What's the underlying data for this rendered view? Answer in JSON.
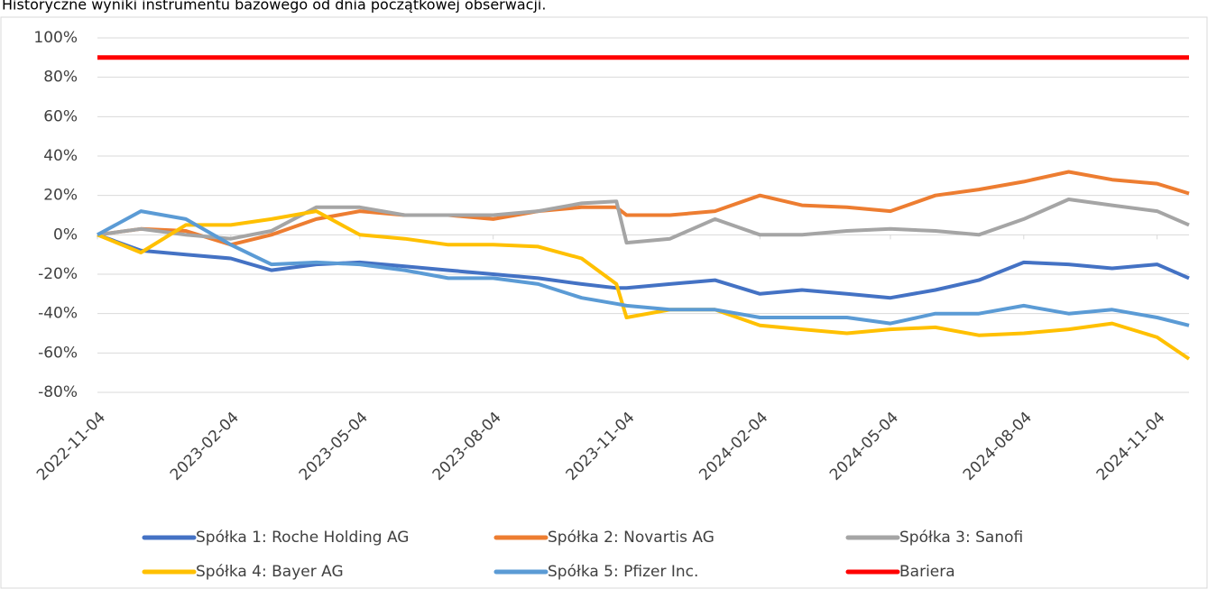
{
  "chart_data": {
    "type": "line",
    "subtitle": "Historyczne wyniki instrumentu bazowego od dnia początkowej obserwacji.",
    "x": [
      "2022-11-04",
      "2022-12-04",
      "2023-01-04",
      "2023-02-04",
      "2023-03-04",
      "2023-04-04",
      "2023-05-04",
      "2023-06-04",
      "2023-07-04",
      "2023-08-04",
      "2023-09-04",
      "2023-10-04",
      "2023-10-28",
      "2023-11-04",
      "2023-12-04",
      "2024-01-04",
      "2024-02-04",
      "2024-03-04",
      "2024-04-04",
      "2024-05-04",
      "2024-06-04",
      "2024-07-04",
      "2024-08-04",
      "2024-09-04",
      "2024-10-04",
      "2024-11-04",
      "2024-11-26"
    ],
    "series": [
      {
        "name": "Spółka 1: Roche Holding AG",
        "color": "#4472c4",
        "values": [
          0,
          -8,
          -10,
          -12,
          -18,
          -15,
          -14,
          -16,
          -18,
          -20,
          -22,
          -25,
          -27,
          -27,
          -25,
          -23,
          -30,
          -28,
          -30,
          -32,
          -28,
          -23,
          -14,
          -15,
          -17,
          -15,
          -22
        ]
      },
      {
        "name": "Spółka 2: Novartis AG",
        "color": "#ed7d31",
        "values": [
          0,
          3,
          2,
          -5,
          0,
          8,
          12,
          10,
          10,
          8,
          12,
          14,
          14,
          10,
          10,
          12,
          20,
          15,
          14,
          12,
          20,
          23,
          27,
          32,
          28,
          26,
          21
        ]
      },
      {
        "name": "Spółka 3: Sanofi",
        "color": "#a5a5a5",
        "values": [
          0,
          3,
          0,
          -2,
          2,
          14,
          14,
          10,
          10,
          10,
          12,
          16,
          17,
          -4,
          -2,
          8,
          0,
          0,
          2,
          3,
          2,
          0,
          8,
          18,
          15,
          12,
          5
        ]
      },
      {
        "name": "Spółka 4: Bayer AG",
        "color": "#ffc000",
        "values": [
          0,
          -9,
          5,
          5,
          8,
          12,
          0,
          -2,
          -5,
          -5,
          -6,
          -12,
          -25,
          -42,
          -38,
          -38,
          -46,
          -48,
          -50,
          -48,
          -47,
          -51,
          -50,
          -48,
          -45,
          -52,
          -63
        ]
      },
      {
        "name": "Spółka 5: Pfizer Inc.",
        "color": "#5b9bd5",
        "values": [
          0,
          12,
          8,
          -5,
          -15,
          -14,
          -15,
          -18,
          -22,
          -22,
          -25,
          -32,
          -35,
          -36,
          -38,
          -38,
          -42,
          -42,
          -42,
          -45,
          -40,
          -40,
          -36,
          -40,
          -38,
          -42,
          -46
        ]
      },
      {
        "name": "Bariera",
        "color": "#ff0000",
        "values": [
          90,
          90,
          90,
          90,
          90,
          90,
          90,
          90,
          90,
          90,
          90,
          90,
          90,
          90,
          90,
          90,
          90,
          90,
          90,
          90,
          90,
          90,
          90,
          90,
          90,
          90,
          90
        ]
      }
    ],
    "xlim": [
      "2022-11-04",
      "2024-11-26"
    ],
    "xticks": [
      "2022-11-04",
      "2023-02-04",
      "2023-05-04",
      "2023-08-04",
      "2023-11-04",
      "2024-02-04",
      "2024-05-04",
      "2024-08-04",
      "2024-11-04"
    ],
    "ylim": [
      -80,
      100
    ],
    "yticks": [
      {
        "value": -80,
        "label": "-80%"
      },
      {
        "value": -60,
        "label": "-60%"
      },
      {
        "value": -40,
        "label": "-40%"
      },
      {
        "value": -20,
        "label": "-20%"
      },
      {
        "value": 0,
        "label": "0%"
      },
      {
        "value": 20,
        "label": "20%"
      },
      {
        "value": 40,
        "label": "40%"
      },
      {
        "value": 60,
        "label": "60%"
      },
      {
        "value": 80,
        "label": "80%"
      },
      {
        "value": 100,
        "label": "100%"
      }
    ],
    "grid": true,
    "legend": "bottom"
  }
}
